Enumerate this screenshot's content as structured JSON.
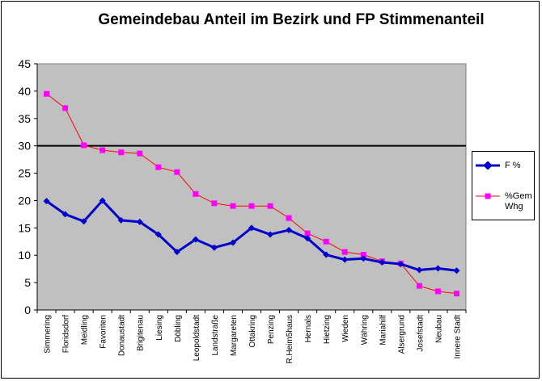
{
  "chart_data": {
    "type": "line",
    "title": "Gemeindebau Anteil im Bezirk und FP Stimmenanteil",
    "categories": [
      "Simmering",
      "Floridsdorf",
      "Meidling",
      "Favoriten",
      "Donaustadt",
      "Brigitenau",
      "Liesing",
      "Döbling",
      "Leopoldstadt",
      "Landstraße",
      "Margareten",
      "Ottakring",
      "Penzing",
      "R.Heim5haus",
      "Hernals",
      "Hietzing",
      "Wieden",
      "Währing",
      "Mariahilf",
      "Alsergrund",
      "Josefstadt",
      "Neubau",
      "Innere Stadt"
    ],
    "series": [
      {
        "name": "F  %",
        "color": "#0000cc",
        "marker": "diamond",
        "values": [
          19.9,
          17.5,
          16.2,
          20.0,
          16.4,
          16.1,
          13.8,
          10.6,
          12.9,
          11.4,
          12.3,
          15.0,
          13.8,
          14.6,
          13.1,
          10.1,
          9.2,
          9.4,
          8.7,
          8.4,
          7.3,
          7.6,
          7.2
        ]
      },
      {
        "name": "%Gem Whg",
        "color": "#ff00ff",
        "marker": "square",
        "values": [
          39.5,
          36.9,
          30.1,
          29.2,
          28.8,
          28.6,
          26.1,
          25.2,
          21.2,
          19.5,
          19.0,
          19.0,
          19.0,
          16.8,
          14.0,
          12.5,
          10.6,
          10.1,
          8.9,
          8.5,
          4.4,
          3.4,
          3.0
        ]
      }
    ],
    "ylim": [
      0,
      45
    ],
    "yticks": [
      0,
      5,
      10,
      15,
      20,
      25,
      30,
      35,
      40,
      45
    ],
    "grid": "major gridline at 30 only",
    "plot_background": "#c0c0c0",
    "legend_position": "right"
  }
}
